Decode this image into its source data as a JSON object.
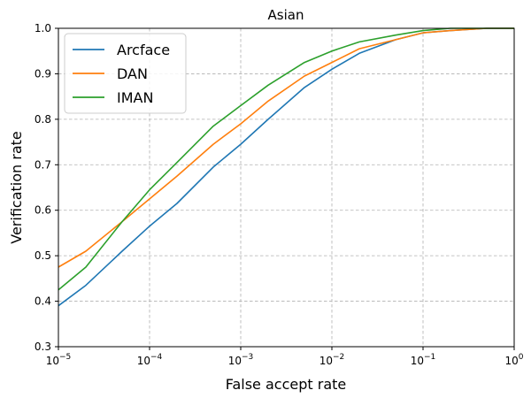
{
  "chart_data": {
    "type": "line",
    "title": "Asian",
    "xlabel": "False accept rate",
    "ylabel": "Verification rate",
    "xscale": "log",
    "xlim": [
      1e-05,
      1
    ],
    "ylim": [
      0.3,
      1.0
    ],
    "grid": true,
    "legend_position": "top-left",
    "x_ticks": [
      {
        "value": 1e-05,
        "base": "10",
        "exp": "−5"
      },
      {
        "value": 0.0001,
        "base": "10",
        "exp": "−4"
      },
      {
        "value": 0.001,
        "base": "10",
        "exp": "−3"
      },
      {
        "value": 0.01,
        "base": "10",
        "exp": "−2"
      },
      {
        "value": 0.1,
        "base": "10",
        "exp": "−1"
      },
      {
        "value": 1,
        "base": "10",
        "exp": "0"
      }
    ],
    "y_ticks": [
      {
        "value": 0.3,
        "label": "0.3"
      },
      {
        "value": 0.4,
        "label": "0.4"
      },
      {
        "value": 0.5,
        "label": "0.5"
      },
      {
        "value": 0.6,
        "label": "0.6"
      },
      {
        "value": 0.7,
        "label": "0.7"
      },
      {
        "value": 0.8,
        "label": "0.8"
      },
      {
        "value": 0.9,
        "label": "0.9"
      },
      {
        "value": 1.0,
        "label": "1.0"
      }
    ],
    "series": [
      {
        "name": "Arcface",
        "color": "#1f77b4",
        "points": [
          [
            1e-05,
            0.39
          ],
          [
            2e-05,
            0.435
          ],
          [
            5e-05,
            0.51
          ],
          [
            0.0001,
            0.565
          ],
          [
            0.0002,
            0.615
          ],
          [
            0.0005,
            0.695
          ],
          [
            0.001,
            0.745
          ],
          [
            0.002,
            0.8
          ],
          [
            0.005,
            0.87
          ],
          [
            0.01,
            0.91
          ],
          [
            0.02,
            0.945
          ],
          [
            0.05,
            0.975
          ],
          [
            0.1,
            0.99
          ],
          [
            0.2,
            0.995
          ],
          [
            0.5,
            1.0
          ],
          [
            1,
            1.0
          ]
        ]
      },
      {
        "name": "DAN",
        "color": "#ff7f0e",
        "points": [
          [
            1e-05,
            0.475
          ],
          [
            2e-05,
            0.51
          ],
          [
            5e-05,
            0.575
          ],
          [
            0.0001,
            0.625
          ],
          [
            0.0002,
            0.675
          ],
          [
            0.0005,
            0.745
          ],
          [
            0.001,
            0.79
          ],
          [
            0.002,
            0.84
          ],
          [
            0.005,
            0.895
          ],
          [
            0.01,
            0.925
          ],
          [
            0.02,
            0.955
          ],
          [
            0.05,
            0.975
          ],
          [
            0.1,
            0.99
          ],
          [
            0.2,
            0.995
          ],
          [
            0.5,
            1.0
          ],
          [
            1,
            1.0
          ]
        ]
      },
      {
        "name": "IMAN",
        "color": "#2ca02c",
        "points": [
          [
            1e-05,
            0.425
          ],
          [
            2e-05,
            0.475
          ],
          [
            5e-05,
            0.575
          ],
          [
            0.0001,
            0.645
          ],
          [
            0.0002,
            0.705
          ],
          [
            0.0005,
            0.785
          ],
          [
            0.001,
            0.83
          ],
          [
            0.002,
            0.875
          ],
          [
            0.005,
            0.925
          ],
          [
            0.01,
            0.95
          ],
          [
            0.02,
            0.97
          ],
          [
            0.05,
            0.985
          ],
          [
            0.1,
            0.995
          ],
          [
            0.2,
            1.0
          ],
          [
            0.5,
            1.0
          ],
          [
            1,
            1.0
          ]
        ]
      }
    ]
  }
}
